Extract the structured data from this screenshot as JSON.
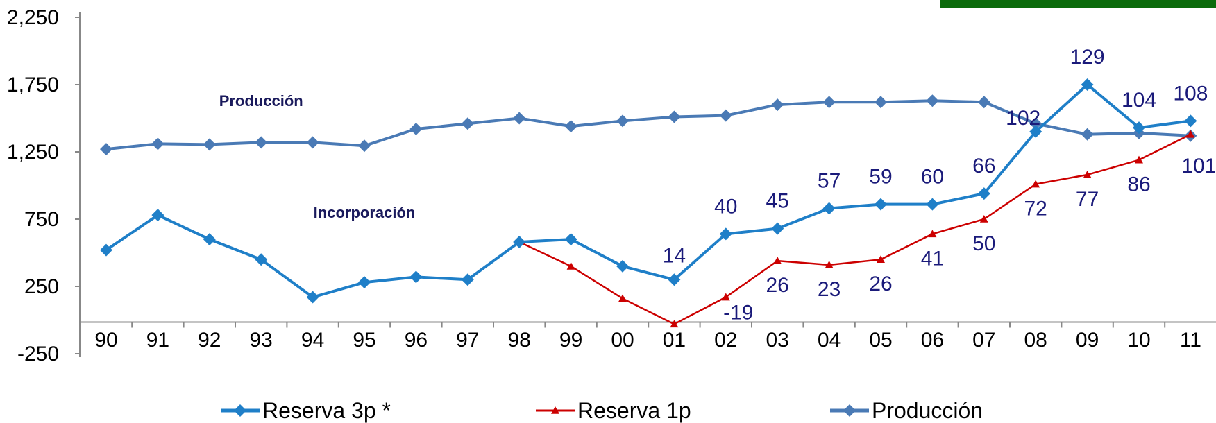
{
  "chart_data": {
    "type": "line",
    "title": "",
    "xlabel": "",
    "ylabel": "",
    "categories": [
      "90",
      "91",
      "92",
      "93",
      "94",
      "95",
      "96",
      "97",
      "98",
      "99",
      "00",
      "01",
      "02",
      "03",
      "04",
      "05",
      "06",
      "07",
      "08",
      "09",
      "10",
      "11"
    ],
    "ylim": [
      -250,
      2250
    ],
    "yticks": [
      -250,
      250,
      750,
      1250,
      1750,
      2250
    ],
    "ytick_labels": [
      "-250",
      "250",
      "750",
      "1,250",
      "1,750",
      "2,250"
    ],
    "grid": false,
    "legend_position": "bottom",
    "series": [
      {
        "name": "Reserva 3p *",
        "color": "#1f7fc8",
        "marker": "diamond",
        "values": [
          520,
          780,
          600,
          450,
          170,
          280,
          320,
          300,
          580,
          600,
          400,
          300,
          640,
          680,
          830,
          860,
          860,
          940,
          1400,
          1750,
          1430,
          1480
        ],
        "labels": [
          "",
          "",
          "",
          "",
          "",
          "",
          "",
          "",
          "",
          "",
          "",
          "14",
          "40",
          "45",
          "57",
          "59",
          "60",
          "66",
          "102",
          "129",
          "104",
          "108"
        ],
        "label_from_index": 11
      },
      {
        "name": "Reserva 1p",
        "color": "#cc0000",
        "marker": "triangle",
        "start_index": 8,
        "values": [
          null,
          null,
          null,
          null,
          null,
          null,
          null,
          null,
          580,
          400,
          160,
          -30,
          170,
          440,
          410,
          450,
          640,
          750,
          1010,
          1080,
          1190,
          1380
        ],
        "labels": [
          "",
          "",
          "",
          "",
          "",
          "",
          "",
          "",
          "",
          "",
          "",
          "",
          "-19",
          "26",
          "23",
          "26",
          "41",
          "50",
          "72",
          "77",
          "86",
          "101"
        ]
      },
      {
        "name": "Producción",
        "color": "#4a7ab5",
        "marker": "diamond",
        "values": [
          1270,
          1310,
          1305,
          1320,
          1320,
          1295,
          1420,
          1460,
          1500,
          1440,
          1480,
          1510,
          1520,
          1600,
          1620,
          1620,
          1630,
          1620,
          1460,
          1380,
          1390,
          1370
        ]
      }
    ],
    "annotations": [
      {
        "text": "Producción",
        "category_index": 3,
        "value": 1590
      },
      {
        "text": "Incorporación",
        "category_index": 5,
        "value": 760
      }
    ],
    "accent_bar_color": "#0b6b0b"
  }
}
